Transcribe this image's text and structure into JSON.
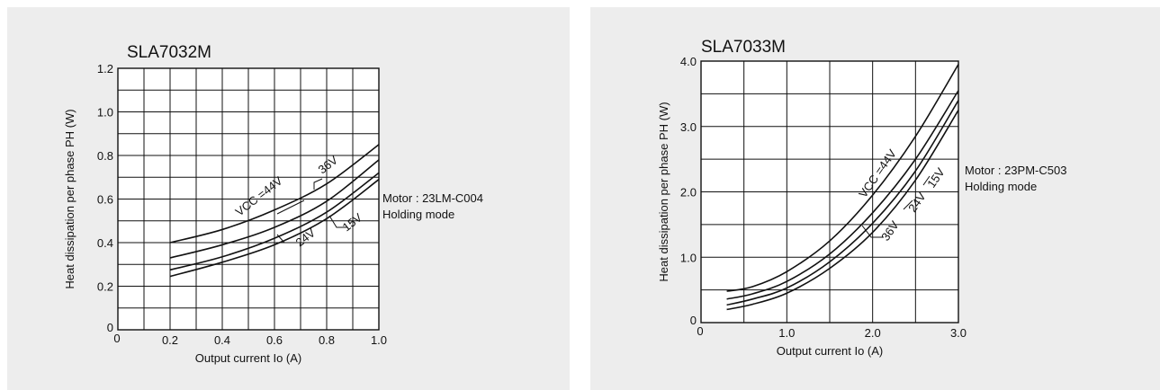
{
  "colors": {
    "panel_background": "#ededed",
    "ink": "#111111"
  },
  "chart_data": [
    {
      "type": "line",
      "title": "SLA7032M",
      "xlabel": "Output current Io (A)",
      "ylabel": "Heat dissipation per phase PH (W)",
      "xlim": [
        0,
        1.0
      ],
      "ylim": [
        0,
        1.2
      ],
      "x_ticks": [
        0,
        0.2,
        0.4,
        0.6,
        0.8,
        1.0
      ],
      "x_tick_labels": [
        "0",
        "0.2",
        "0.4",
        "0.6",
        "0.8",
        "1.0"
      ],
      "y_ticks": [
        0,
        0.2,
        0.4,
        0.6,
        0.8,
        1.0,
        1.2
      ],
      "y_tick_labels": [
        "0",
        "0.2",
        "0.4",
        "0.6",
        "0.8",
        "1.0",
        "1.2"
      ],
      "grid": true,
      "annotation": {
        "line1": "Motor : 23LM-C004",
        "line2": "Holding mode"
      },
      "series": [
        {
          "name": "VCC =44V",
          "x": [
            0.2,
            0.4,
            0.6,
            0.8,
            1.0
          ],
          "y": [
            0.4,
            0.46,
            0.55,
            0.67,
            0.85
          ]
        },
        {
          "name": "36V",
          "x": [
            0.2,
            0.4,
            0.6,
            0.8,
            1.0
          ],
          "y": [
            0.33,
            0.39,
            0.47,
            0.59,
            0.78
          ]
        },
        {
          "name": "24V",
          "x": [
            0.2,
            0.4,
            0.6,
            0.8,
            1.0
          ],
          "y": [
            0.275,
            0.335,
            0.42,
            0.54,
            0.72
          ]
        },
        {
          "name": "15V",
          "x": [
            0.2,
            0.4,
            0.6,
            0.8,
            1.0
          ],
          "y": [
            0.245,
            0.31,
            0.39,
            0.51,
            0.69
          ]
        }
      ]
    },
    {
      "type": "line",
      "title": "SLA7033M",
      "xlabel": "Output current Io (A)",
      "ylabel": "Heat dissipation per phase PH (W)",
      "xlim": [
        0,
        3.0
      ],
      "ylim": [
        0,
        4.0
      ],
      "x_ticks": [
        0,
        1.0,
        2.0,
        3.0
      ],
      "x_tick_labels": [
        "0",
        "1.0",
        "2.0",
        "3.0"
      ],
      "y_ticks": [
        0,
        1.0,
        2.0,
        3.0,
        4.0
      ],
      "y_tick_labels": [
        "0",
        "1.0",
        "2.0",
        "3.0",
        "4.0"
      ],
      "grid": true,
      "annotation": {
        "line1": "Motor : 23PM-C503",
        "line2": "Holding mode"
      },
      "series": [
        {
          "name": "VCC =44V",
          "x": [
            0.3,
            0.6,
            1.0,
            1.5,
            2.0,
            2.5,
            3.0
          ],
          "y": [
            0.48,
            0.55,
            0.78,
            1.25,
            1.95,
            2.85,
            3.95
          ]
        },
        {
          "name": "36V",
          "x": [
            0.3,
            0.6,
            1.0,
            1.5,
            2.0,
            2.5,
            3.0
          ],
          "y": [
            0.36,
            0.44,
            0.63,
            1.05,
            1.68,
            2.5,
            3.55
          ]
        },
        {
          "name": "24V",
          "x": [
            0.3,
            0.6,
            1.0,
            1.5,
            2.0,
            2.5,
            3.0
          ],
          "y": [
            0.27,
            0.36,
            0.53,
            0.93,
            1.52,
            2.32,
            3.4
          ]
        },
        {
          "name": "15V",
          "x": [
            0.3,
            0.6,
            1.0,
            1.5,
            2.0,
            2.5,
            3.0
          ],
          "y": [
            0.2,
            0.28,
            0.45,
            0.83,
            1.38,
            2.18,
            3.25
          ]
        }
      ]
    }
  ]
}
